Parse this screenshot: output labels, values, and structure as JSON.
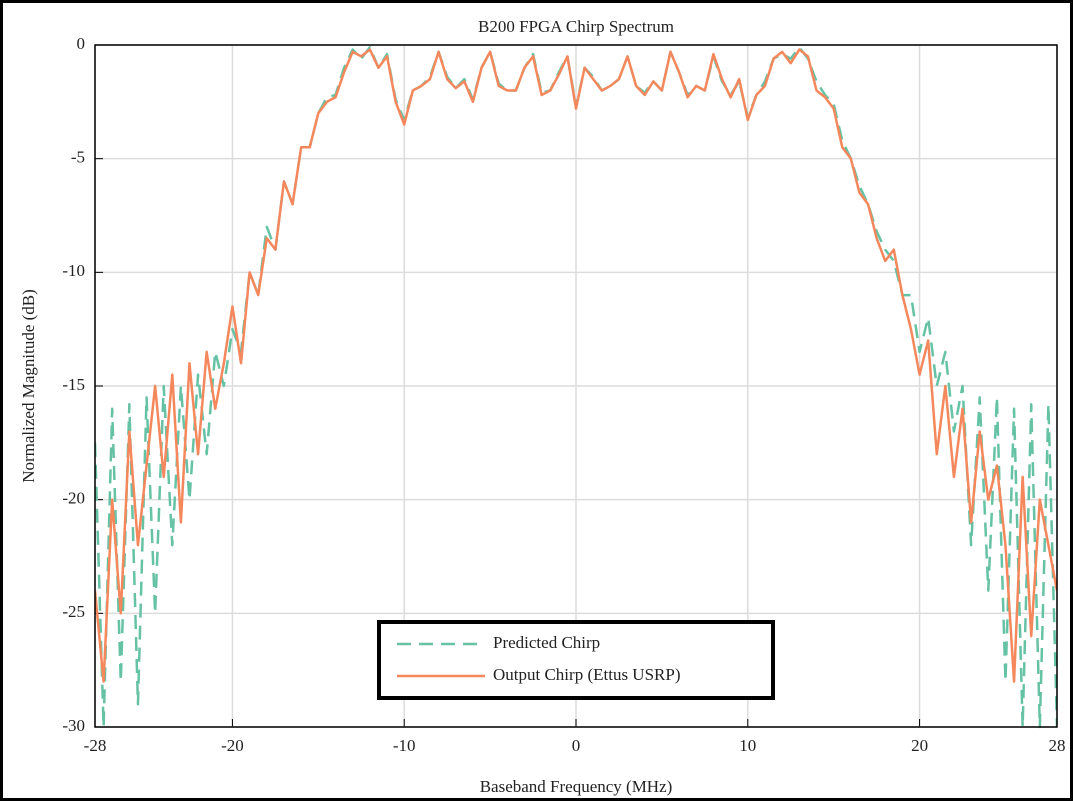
{
  "chart_data": {
    "type": "line",
    "title": "B200 FPGA Chirp Spectrum",
    "x_label": "Baseband Frequency (MHz)",
    "y_label": "Normalized Magnitude (dB)",
    "x": [
      -28,
      -27.5,
      -27,
      -26.5,
      -26,
      -25.5,
      -25,
      -24.5,
      -24,
      -23.5,
      -23,
      -22.5,
      -22,
      -21.5,
      -21,
      -20.5,
      -20,
      -19.5,
      -19,
      -18.5,
      -18,
      -17.5,
      -17,
      -16.5,
      -16,
      -15.5,
      -15,
      -14.5,
      -14,
      -13.5,
      -13,
      -12.5,
      -12,
      -11.5,
      -11,
      -10.5,
      -10,
      -9.5,
      -9,
      -8.5,
      -8,
      -7.5,
      -7,
      -6.5,
      -6,
      -5.5,
      -5,
      -4.5,
      -4,
      -3.5,
      -3,
      -2.5,
      -2,
      -1.5,
      -1,
      -0.5,
      0,
      0.5,
      1,
      1.5,
      2,
      2.5,
      3,
      3.5,
      4,
      4.5,
      5,
      5.5,
      6,
      6.5,
      7,
      7.5,
      8,
      8.5,
      9,
      9.5,
      10,
      10.5,
      11,
      11.5,
      12,
      12.5,
      13,
      13.5,
      14,
      14.5,
      15,
      15.5,
      16,
      16.5,
      17,
      17.5,
      18,
      18.5,
      19,
      19.5,
      20,
      20.5,
      21,
      21.5,
      22,
      22.5,
      23,
      23.5,
      24,
      24.5,
      25,
      25.5,
      26,
      26.5,
      27,
      27.5,
      28
    ],
    "series": [
      {
        "name": "Predicted Chirp",
        "color": "#66c2a5",
        "style": "dashed",
        "values": [
          -17.5,
          -30,
          -16,
          -28,
          -15.8,
          -29,
          -15.5,
          -25,
          -15,
          -22,
          -15,
          -20,
          -14.5,
          -18,
          -13.5,
          -15,
          -12.5,
          -13.5,
          -10,
          -11,
          -8,
          -9,
          -6,
          -7,
          -4.5,
          -4.5,
          -3,
          -2.3,
          -2.2,
          -1,
          -0.2,
          -0.6,
          -0.1,
          -1,
          -0.4,
          -2.4,
          -3.3,
          -2,
          -1.8,
          -1.4,
          -0.3,
          -1.4,
          -1.9,
          -1.5,
          -2.4,
          -1,
          -0.3,
          -1.7,
          -2,
          -2,
          -1,
          -0.4,
          -2.1,
          -2,
          -1.2,
          -0.5,
          -2.7,
          -1,
          -1.4,
          -2,
          -1.8,
          -1.5,
          -0.5,
          -1.8,
          -2.1,
          -1.6,
          -2,
          -0.3,
          -1.2,
          -2.2,
          -1.8,
          -2,
          -0.5,
          -1.6,
          -2.2,
          -1.6,
          -3.2,
          -2.2,
          -1.6,
          -0.6,
          -0.4,
          -0.6,
          -0.1,
          -0.6,
          -1.6,
          -2.2,
          -2.6,
          -4.2,
          -5,
          -6.2,
          -7,
          -8.2,
          -9,
          -9.5,
          -11,
          -11,
          -13.5,
          -12,
          -15,
          -13.5,
          -17,
          -15,
          -22,
          -15.5,
          -24,
          -15.5,
          -28,
          -16,
          -30,
          -15.8,
          -30,
          -15.8,
          -30
        ]
      },
      {
        "name": "Output Chirp (Ettus USRP)",
        "color": "#f4885c",
        "style": "solid",
        "values": [
          -24,
          -28,
          -20,
          -25,
          -17,
          -22,
          -18.5,
          -15,
          -19,
          -14.5,
          -21,
          -14,
          -18,
          -13.5,
          -16,
          -14,
          -11.5,
          -14,
          -10,
          -11,
          -8.5,
          -9,
          -6,
          -7,
          -4.5,
          -4.5,
          -3,
          -2.5,
          -2.3,
          -1.2,
          -0.3,
          -0.5,
          -0.2,
          -1,
          -0.5,
          -2.5,
          -3.5,
          -2,
          -1.8,
          -1.5,
          -0.3,
          -1.5,
          -1.9,
          -1.6,
          -2.5,
          -1,
          -0.3,
          -1.8,
          -2,
          -2,
          -1,
          -0.5,
          -2.2,
          -2,
          -1.3,
          -0.5,
          -2.8,
          -1,
          -1.5,
          -2,
          -1.8,
          -1.5,
          -0.5,
          -1.8,
          -2.2,
          -1.6,
          -2,
          -0.3,
          -1.2,
          -2.3,
          -1.8,
          -2,
          -0.4,
          -1.5,
          -2.3,
          -1.5,
          -3.3,
          -2.2,
          -1.8,
          -0.6,
          -0.3,
          -0.8,
          -0.2,
          -0.5,
          -2,
          -2.3,
          -2.8,
          -4.5,
          -5,
          -6.5,
          -7,
          -8.5,
          -9.5,
          -9,
          -11,
          -12.5,
          -14.5,
          -13,
          -18,
          -15,
          -19,
          -16,
          -21,
          -17,
          -20,
          -18.5,
          -22,
          -28,
          -19,
          -26,
          -20,
          -22,
          -24
        ]
      }
    ],
    "xlim": [
      -28,
      28
    ],
    "ylim": [
      -30,
      0
    ],
    "xticks": [
      -28,
      -20,
      -10,
      0,
      10,
      20,
      28
    ],
    "yticks": [
      -30,
      -25,
      -20,
      -15,
      -10,
      -5,
      0
    ],
    "grid": true,
    "legend": "lower center"
  }
}
